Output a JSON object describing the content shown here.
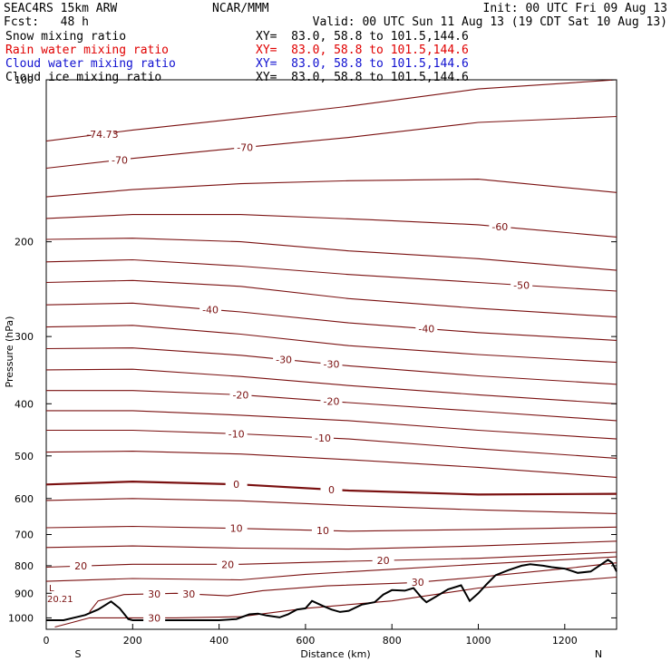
{
  "header": {
    "model": "SEAC4RS 15km ARW",
    "center": "NCAR/MMM",
    "init": "Init: 00 UTC Fri 09 Aug 13",
    "fcst": "Fcst:   48 h",
    "valid": "Valid: 00 UTC Sun 11 Aug 13 (19 CDT Sat 10 Aug 13)",
    "fields": [
      {
        "name": "Snow mixing ratio",
        "xy": "XY=  83.0, 58.8 to 101.5,144.6",
        "color": "#000000"
      },
      {
        "name": "Rain water mixing ratio",
        "xy": "XY=  83.0, 58.8 to 101.5,144.6",
        "color": "#e00000"
      },
      {
        "name": "Cloud water mixing ratio",
        "xy": "XY=  83.0, 58.8 to 101.5,144.6",
        "color": "#1010d0"
      },
      {
        "name": "Cloud ice mixing ratio",
        "xy": "XY=  83.0, 58.8 to 101.5,144.6",
        "color": "#000000"
      }
    ]
  },
  "chart_data": {
    "type": "line",
    "xlabel": "Distance (km)",
    "ylabel": "Pressure (hPa)",
    "xlim": [
      0,
      1320
    ],
    "ylim": [
      1050,
      100
    ],
    "y_scale": "log",
    "x_ticks": [
      0,
      200,
      400,
      600,
      800,
      1000,
      1200
    ],
    "y_ticks": [
      100,
      200,
      300,
      400,
      500,
      600,
      700,
      800,
      900,
      1000
    ],
    "x_end_labels": {
      "left": "S",
      "right": "N"
    },
    "contour_color": "#7a1010",
    "terrain_color": "#000000",
    "corner_label": "L",
    "corner_value": "20.21",
    "contour_labels": [
      "-74.73",
      "-70",
      "-70",
      "-60",
      "-50",
      "-40",
      "-40",
      "-30",
      "-30",
      "-20",
      "-20",
      "-10",
      "-10",
      "0",
      "0",
      "10",
      "10",
      "20",
      "20",
      "20",
      "30",
      "30",
      "30",
      "30"
    ],
    "isotherms": [
      {
        "level": -74,
        "p": [
          [
            0,
            130
          ],
          [
            200,
            124
          ],
          [
            450,
            118
          ],
          [
            700,
            112
          ],
          [
            1000,
            104
          ],
          [
            1320,
            100
          ]
        ]
      },
      {
        "level": -70,
        "p": [
          [
            0,
            146
          ],
          [
            200,
            140
          ],
          [
            400,
            135
          ],
          [
            700,
            128
          ],
          [
            1000,
            120
          ],
          [
            1320,
            117
          ]
        ]
      },
      {
        "level": -65,
        "p": [
          [
            0,
            165
          ],
          [
            200,
            160
          ],
          [
            450,
            156
          ],
          [
            700,
            154
          ],
          [
            1000,
            153
          ],
          [
            1320,
            162
          ]
        ]
      },
      {
        "level": -60,
        "p": [
          [
            0,
            181
          ],
          [
            200,
            178
          ],
          [
            450,
            178
          ],
          [
            750,
            182
          ],
          [
            1000,
            186
          ],
          [
            1320,
            196
          ]
        ]
      },
      {
        "level": -55,
        "p": [
          [
            0,
            198
          ],
          [
            200,
            197
          ],
          [
            450,
            200
          ],
          [
            700,
            208
          ],
          [
            1000,
            215
          ],
          [
            1320,
            226
          ]
        ]
      },
      {
        "level": -50,
        "p": [
          [
            0,
            218
          ],
          [
            200,
            216
          ],
          [
            450,
            222
          ],
          [
            700,
            230
          ],
          [
            1000,
            238
          ],
          [
            1320,
            247
          ]
        ]
      },
      {
        "level": -45,
        "p": [
          [
            0,
            238
          ],
          [
            200,
            236
          ],
          [
            450,
            242
          ],
          [
            700,
            255
          ],
          [
            1000,
            266
          ],
          [
            1320,
            276
          ]
        ]
      },
      {
        "level": -40,
        "p": [
          [
            0,
            262
          ],
          [
            200,
            260
          ],
          [
            450,
            270
          ],
          [
            700,
            283
          ],
          [
            1000,
            295
          ],
          [
            1320,
            305
          ]
        ]
      },
      {
        "level": -35,
        "p": [
          [
            0,
            288
          ],
          [
            200,
            286
          ],
          [
            450,
            297
          ],
          [
            700,
            312
          ],
          [
            1000,
            324
          ],
          [
            1320,
            335
          ]
        ]
      },
      {
        "level": -30,
        "p": [
          [
            0,
            316
          ],
          [
            200,
            315
          ],
          [
            450,
            325
          ],
          [
            700,
            340
          ],
          [
            1000,
            355
          ],
          [
            1320,
            368
          ]
        ]
      },
      {
        "level": -25,
        "p": [
          [
            0,
            346
          ],
          [
            200,
            345
          ],
          [
            450,
            356
          ],
          [
            700,
            370
          ],
          [
            1000,
            385
          ],
          [
            1320,
            400
          ]
        ]
      },
      {
        "level": -20,
        "p": [
          [
            0,
            378
          ],
          [
            200,
            378
          ],
          [
            450,
            385
          ],
          [
            700,
            398
          ],
          [
            1000,
            413
          ],
          [
            1320,
            430
          ]
        ]
      },
      {
        "level": -15,
        "p": [
          [
            0,
            412
          ],
          [
            200,
            412
          ],
          [
            450,
            420
          ],
          [
            700,
            430
          ],
          [
            1000,
            448
          ],
          [
            1320,
            465
          ]
        ]
      },
      {
        "level": -10,
        "p": [
          [
            0,
            448
          ],
          [
            200,
            448
          ],
          [
            450,
            455
          ],
          [
            700,
            465
          ],
          [
            1000,
            485
          ],
          [
            1320,
            505
          ]
        ]
      },
      {
        "level": -5,
        "p": [
          [
            0,
            492
          ],
          [
            200,
            490
          ],
          [
            450,
            496
          ],
          [
            700,
            508
          ],
          [
            1000,
            525
          ],
          [
            1320,
            548
          ]
        ]
      },
      {
        "level": 0,
        "p": [
          [
            0,
            565
          ],
          [
            200,
            558
          ],
          [
            450,
            565
          ],
          [
            700,
            580
          ],
          [
            1000,
            590
          ],
          [
            1320,
            588
          ]
        ]
      },
      {
        "level": 5,
        "p": [
          [
            0,
            605
          ],
          [
            200,
            600
          ],
          [
            450,
            606
          ],
          [
            700,
            618
          ],
          [
            1000,
            630
          ],
          [
            1320,
            640
          ]
        ]
      },
      {
        "level": 10,
        "p": [
          [
            0,
            680
          ],
          [
            200,
            676
          ],
          [
            450,
            682
          ],
          [
            700,
            690
          ],
          [
            1000,
            685
          ],
          [
            1320,
            678
          ]
        ]
      },
      {
        "level": 15,
        "p": [
          [
            0,
            740
          ],
          [
            200,
            735
          ],
          [
            450,
            742
          ],
          [
            700,
            745
          ],
          [
            1000,
            735
          ],
          [
            1320,
            720
          ]
        ]
      },
      {
        "level": 20,
        "p": [
          [
            0,
            805
          ],
          [
            200,
            795
          ],
          [
            450,
            795
          ],
          [
            700,
            785
          ],
          [
            1000,
            775
          ],
          [
            1320,
            755
          ]
        ]
      },
      {
        "level": 25,
        "p": [
          [
            0,
            855
          ],
          [
            200,
            845
          ],
          [
            450,
            850
          ],
          [
            600,
            830
          ],
          [
            800,
            812
          ],
          [
            1000,
            795
          ],
          [
            1320,
            770
          ]
        ]
      },
      {
        "level": 30,
        "p": [
          [
            100,
            975
          ],
          [
            120,
            930
          ],
          [
            180,
            905
          ],
          [
            300,
            900
          ],
          [
            420,
            910
          ],
          [
            500,
            890
          ],
          [
            650,
            872
          ],
          [
            850,
            860
          ],
          [
            1000,
            840
          ],
          [
            1200,
            810
          ],
          [
            1320,
            790
          ]
        ]
      },
      {
        "level": 32,
        "p": [
          [
            20,
            1040
          ],
          [
            60,
            1020
          ],
          [
            100,
            1000
          ],
          [
            300,
            1000
          ],
          [
            450,
            995
          ],
          [
            600,
            960
          ],
          [
            800,
            930
          ],
          [
            1000,
            880
          ],
          [
            1320,
            840
          ]
        ]
      }
    ],
    "terrain": [
      [
        0,
        1010
      ],
      [
        40,
        1010
      ],
      [
        90,
        988
      ],
      [
        120,
        965
      ],
      [
        150,
        932
      ],
      [
        170,
        960
      ],
      [
        190,
        1005
      ],
      [
        200,
        1010
      ],
      [
        300,
        1010
      ],
      [
        400,
        1010
      ],
      [
        440,
        1005
      ],
      [
        470,
        985
      ],
      [
        490,
        982
      ],
      [
        510,
        990
      ],
      [
        540,
        998
      ],
      [
        560,
        985
      ],
      [
        580,
        965
      ],
      [
        600,
        960
      ],
      [
        615,
        930
      ],
      [
        640,
        950
      ],
      [
        660,
        965
      ],
      [
        680,
        975
      ],
      [
        700,
        970
      ],
      [
        730,
        945
      ],
      [
        760,
        935
      ],
      [
        780,
        905
      ],
      [
        800,
        888
      ],
      [
        830,
        890
      ],
      [
        850,
        880
      ],
      [
        870,
        920
      ],
      [
        880,
        935
      ],
      [
        900,
        915
      ],
      [
        930,
        885
      ],
      [
        960,
        870
      ],
      [
        980,
        930
      ],
      [
        1000,
        900
      ],
      [
        1020,
        865
      ],
      [
        1040,
        833
      ],
      [
        1070,
        815
      ],
      [
        1100,
        800
      ],
      [
        1120,
        795
      ],
      [
        1150,
        800
      ],
      [
        1170,
        805
      ],
      [
        1200,
        810
      ],
      [
        1230,
        825
      ],
      [
        1260,
        820
      ],
      [
        1280,
        800
      ],
      [
        1300,
        780
      ],
      [
        1310,
        790
      ],
      [
        1320,
        820
      ]
    ]
  }
}
